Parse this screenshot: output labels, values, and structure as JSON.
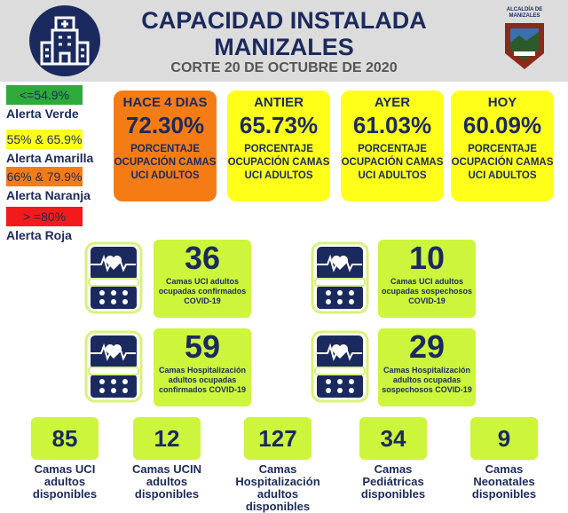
{
  "header": {
    "title_line1": "CAPACIDAD INSTALADA",
    "title_line2": "MANIZALES",
    "subtitle": "CORTE  20 DE OCTUBRE DE 2020",
    "logo_text": "ALCALDÍA DE MANIZALES"
  },
  "legend": [
    {
      "range": "<=54.9%",
      "label": "Alerta Verde",
      "color": "#2eaa3a"
    },
    {
      "range": "55% & 65.9%",
      "label": "Alerta Amarilla",
      "color": "#ffff1a"
    },
    {
      "range": "66% & 79.9%",
      "label": "Alerta Naranja",
      "color": "#f57c15"
    },
    {
      "range": "> =80%",
      "label": "Alerta Roja",
      "color": "#f21b1b"
    }
  ],
  "cards": [
    {
      "period": "HACE 4 DIAS",
      "value": "72.30%",
      "desc": "PORCENTAJE OCUPACIÓN CAMAS UCI ADULTOS",
      "color": "#f57c15"
    },
    {
      "period": "ANTIER",
      "value": "65.73%",
      "desc": "PORCENTAJE OCUPACIÓN CAMAS UCI ADULTOS",
      "color": "#ffff1a"
    },
    {
      "period": "AYER",
      "value": "61.03%",
      "desc": "PORCENTAJE OCUPACIÓN CAMAS UCI ADULTOS",
      "color": "#ffff1a"
    },
    {
      "period": "HOY",
      "value": "60.09%",
      "desc": "PORCENTAJE OCUPACIÓN CAMAS UCI ADULTOS",
      "color": "#ffff1a"
    }
  ],
  "stats": [
    {
      "value": "36",
      "desc": "Camas UCI adultos ocupadas confirmados COVID-19"
    },
    {
      "value": "10",
      "desc": "Camas UCI adultos ocupadas sospechosos COVID-19"
    },
    {
      "value": "59",
      "desc": "Camas  Hospitalización adultos ocupadas confirmados COVID-19"
    },
    {
      "value": "29",
      "desc": "Camas  Hospitalización adultos ocupadas sospechosos COVID-19"
    }
  ],
  "available": [
    {
      "value": "85",
      "desc": "Camas UCI adultos disponibles"
    },
    {
      "value": "12",
      "desc": "Camas UCIN adultos disponibles"
    },
    {
      "value": "127",
      "desc": "Camas Hospitalización adultos disponibles"
    },
    {
      "value": "34",
      "desc": "Camas Pediátricas disponibles"
    },
    {
      "value": "9",
      "desc": "Camas Neonatales disponibles"
    }
  ]
}
